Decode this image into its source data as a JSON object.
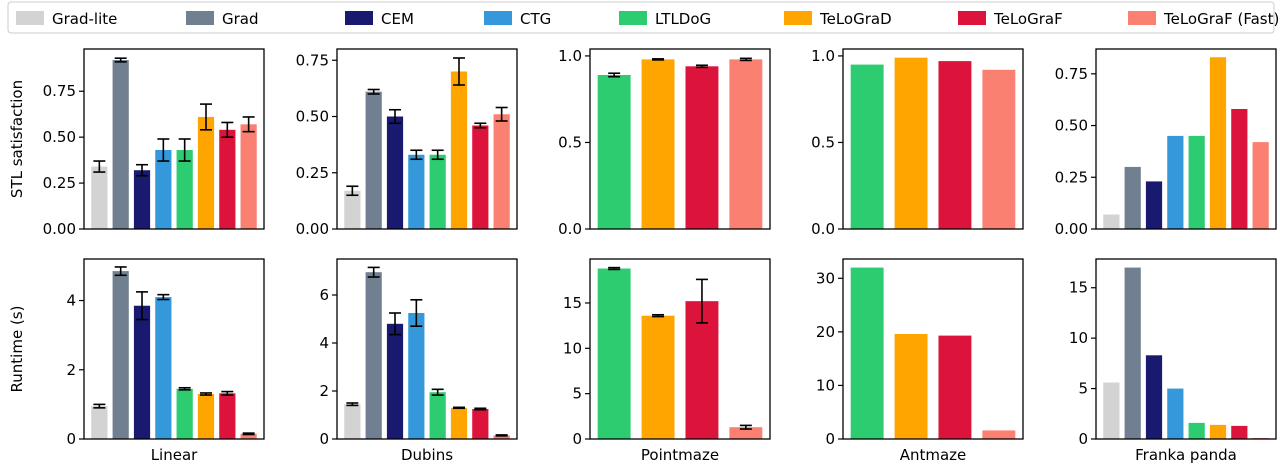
{
  "chart_data": {
    "type": "bar",
    "legend": {
      "placement": "top",
      "entries": [
        {
          "name": "Grad-lite",
          "color": "#d3d3d3"
        },
        {
          "name": "Grad",
          "color": "#708090"
        },
        {
          "name": "CEM",
          "color": "#191970"
        },
        {
          "name": "CTG",
          "color": "#3498db"
        },
        {
          "name": "LTLDoG",
          "color": "#2ecc71"
        },
        {
          "name": "TeLoGraD",
          "color": "#ffa500"
        },
        {
          "name": "TeLoGraF",
          "color": "#dc143c"
        },
        {
          "name": "TeLoGraF (Fast)",
          "color": "#fa8072"
        }
      ]
    },
    "row_ylabels": [
      "STL satisfaction",
      "Runtime (s)"
    ],
    "panels": [
      {
        "env": "Linear",
        "row": 0,
        "methods": [
          0,
          1,
          2,
          3,
          4,
          5,
          6,
          7
        ],
        "values": [
          0.34,
          0.92,
          0.32,
          0.43,
          0.43,
          0.61,
          0.54,
          0.57
        ],
        "errors": [
          0.03,
          0.01,
          0.03,
          0.06,
          0.06,
          0.07,
          0.04,
          0.04
        ],
        "ylim": [
          0,
          0.98
        ],
        "yticks": [
          "0.00",
          "0.25",
          "0.50",
          "0.75"
        ]
      },
      {
        "env": "Dubins",
        "row": 0,
        "methods": [
          0,
          1,
          2,
          3,
          4,
          5,
          6,
          7
        ],
        "values": [
          0.17,
          0.61,
          0.5,
          0.33,
          0.33,
          0.7,
          0.46,
          0.51
        ],
        "errors": [
          0.02,
          0.01,
          0.03,
          0.02,
          0.02,
          0.06,
          0.01,
          0.03
        ],
        "ylim": [
          0,
          0.8
        ],
        "yticks": [
          "0.00",
          "0.25",
          "0.50",
          "0.75"
        ]
      },
      {
        "env": "Pointmaze",
        "row": 0,
        "methods": [
          4,
          5,
          6,
          7
        ],
        "values": [
          0.89,
          0.98,
          0.94,
          0.98
        ],
        "errors": [
          0.01,
          0.003,
          0.006,
          0.006
        ],
        "ylim": [
          0,
          1.04
        ],
        "yticks": [
          "0.0",
          "0.5",
          "1.0"
        ]
      },
      {
        "env": "Antmaze",
        "row": 0,
        "methods": [
          4,
          5,
          6,
          7
        ],
        "values": [
          0.95,
          0.99,
          0.97,
          0.92
        ],
        "errors": null,
        "ylim": [
          0,
          1.04
        ],
        "yticks": [
          "0.0",
          "0.5",
          "1.0"
        ]
      },
      {
        "env": "Franka panda",
        "row": 0,
        "methods": [
          0,
          1,
          2,
          3,
          4,
          5,
          6,
          7
        ],
        "values": [
          0.07,
          0.3,
          0.23,
          0.45,
          0.45,
          0.83,
          0.58,
          0.42
        ],
        "errors": null,
        "ylim": [
          0,
          0.87
        ],
        "yticks": [
          "0.00",
          "0.25",
          "0.50",
          "0.75"
        ]
      },
      {
        "env": "Linear",
        "row": 1,
        "methods": [
          0,
          1,
          2,
          3,
          4,
          5,
          6,
          7
        ],
        "values": [
          0.95,
          4.85,
          3.85,
          4.1,
          1.45,
          1.3,
          1.32,
          0.15
        ],
        "errors": [
          0.05,
          0.12,
          0.4,
          0.07,
          0.03,
          0.03,
          0.05,
          0.02
        ],
        "ylim": [
          0,
          5.2
        ],
        "yticks": [
          "0",
          "2",
          "4"
        ]
      },
      {
        "env": "Dubins",
        "row": 1,
        "methods": [
          0,
          1,
          2,
          3,
          4,
          5,
          6,
          7
        ],
        "values": [
          1.45,
          6.95,
          4.8,
          5.25,
          1.95,
          1.3,
          1.25,
          0.15
        ],
        "errors": [
          0.05,
          0.2,
          0.45,
          0.55,
          0.12,
          0.02,
          0.03,
          0.02
        ],
        "ylim": [
          0,
          7.5
        ],
        "yticks": [
          "0",
          "2",
          "4",
          "6"
        ]
      },
      {
        "env": "Pointmaze",
        "row": 1,
        "methods": [
          4,
          5,
          6,
          7
        ],
        "values": [
          18.8,
          13.6,
          15.2,
          1.3
        ],
        "errors": [
          0.1,
          0.1,
          2.4,
          0.2
        ],
        "ylim": [
          0,
          19.85
        ],
        "yticks": [
          "0",
          "5",
          "10",
          "15"
        ]
      },
      {
        "env": "Antmaze",
        "row": 1,
        "methods": [
          4,
          5,
          6,
          7
        ],
        "values": [
          32.0,
          19.6,
          19.3,
          1.6
        ],
        "errors": null,
        "ylim": [
          0,
          33.6
        ],
        "yticks": [
          "0",
          "10",
          "20",
          "30"
        ]
      },
      {
        "env": "Franka panda",
        "row": 1,
        "methods": [
          0,
          1,
          2,
          3,
          4,
          5,
          6,
          7
        ],
        "values": [
          5.6,
          17.0,
          8.3,
          5.0,
          1.6,
          1.4,
          1.3,
          0.1
        ],
        "errors": null,
        "ylim": [
          0,
          17.85
        ],
        "yticks": [
          "0",
          "5",
          "10",
          "15"
        ]
      }
    ]
  }
}
